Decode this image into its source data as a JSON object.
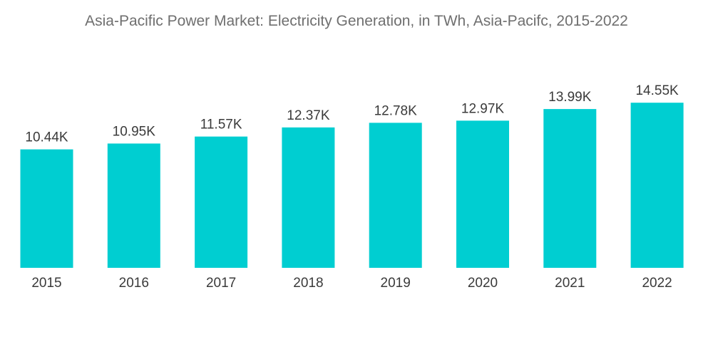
{
  "chart_data": {
    "type": "bar",
    "title": "Asia-Pacific Power Market: Electricity Generation, in TWh, Asia-Pacifc, 2015-2022",
    "xlabel": "",
    "ylabel": "",
    "categories": [
      "2015",
      "2016",
      "2017",
      "2018",
      "2019",
      "2020",
      "2021",
      "2022"
    ],
    "values": [
      10440,
      10950,
      11570,
      12370,
      12780,
      12970,
      13990,
      14550
    ],
    "value_labels": [
      "10.44K",
      "10.95K",
      "11.57K",
      "12.37K",
      "12.78K",
      "12.97K",
      "13.99K",
      "14.55K"
    ],
    "ylim": [
      0,
      23600
    ],
    "grid": false,
    "legend": "none",
    "bar_color": "#00ced1"
  }
}
